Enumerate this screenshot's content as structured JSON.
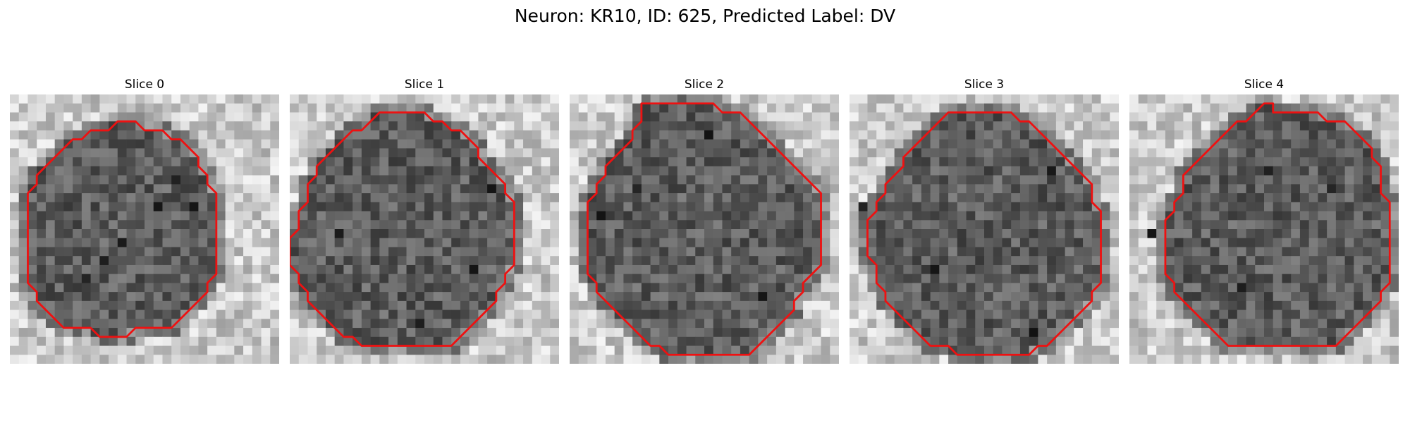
{
  "figure": {
    "title": "Neuron: KR10, ID: 625, Predicted Label: DV"
  },
  "slices": [
    {
      "label": "Slice 0",
      "contour": [
        [
          13,
          3
        ],
        [
          14,
          3
        ],
        [
          15,
          4
        ],
        [
          17,
          4
        ],
        [
          18,
          5
        ],
        [
          19,
          5
        ],
        [
          20,
          6
        ],
        [
          21,
          7
        ],
        [
          21,
          8
        ],
        [
          22,
          9
        ],
        [
          22,
          10
        ],
        [
          23,
          11
        ],
        [
          23,
          12
        ],
        [
          23,
          13
        ],
        [
          23,
          14
        ],
        [
          23,
          15
        ],
        [
          23,
          16
        ],
        [
          23,
          17
        ],
        [
          23,
          18
        ],
        [
          23,
          19
        ],
        [
          23,
          20
        ],
        [
          22,
          21
        ],
        [
          22,
          22
        ],
        [
          21,
          23
        ],
        [
          20,
          24
        ],
        [
          19,
          25
        ],
        [
          18,
          26
        ],
        [
          17,
          26
        ],
        [
          16,
          26
        ],
        [
          15,
          26
        ],
        [
          14,
          26
        ],
        [
          13,
          27
        ],
        [
          12,
          27
        ],
        [
          11,
          27
        ],
        [
          10,
          27
        ],
        [
          9,
          26
        ],
        [
          8,
          26
        ],
        [
          7,
          26
        ],
        [
          6,
          26
        ],
        [
          5,
          25
        ],
        [
          4,
          24
        ],
        [
          3,
          23
        ],
        [
          3,
          22
        ],
        [
          2,
          21
        ],
        [
          2,
          20
        ],
        [
          2,
          19
        ],
        [
          2,
          18
        ],
        [
          2,
          17
        ],
        [
          2,
          16
        ],
        [
          2,
          15
        ],
        [
          2,
          14
        ],
        [
          2,
          13
        ],
        [
          2,
          12
        ],
        [
          2,
          11
        ],
        [
          3,
          10
        ],
        [
          3,
          9
        ],
        [
          4,
          8
        ],
        [
          5,
          7
        ],
        [
          6,
          6
        ],
        [
          7,
          5
        ],
        [
          8,
          5
        ],
        [
          9,
          4
        ],
        [
          11,
          4
        ],
        [
          12,
          3
        ]
      ],
      "dark": [
        [
          18,
          9
        ],
        [
          16,
          12
        ],
        [
          10,
          18
        ],
        [
          20,
          12
        ],
        [
          12,
          16
        ],
        [
          8,
          20
        ]
      ]
    },
    {
      "label": "Slice 1",
      "contour": [
        [
          10,
          2
        ],
        [
          15,
          2
        ],
        [
          16,
          3
        ],
        [
          17,
          3
        ],
        [
          18,
          4
        ],
        [
          19,
          4
        ],
        [
          20,
          5
        ],
        [
          21,
          6
        ],
        [
          21,
          7
        ],
        [
          22,
          8
        ],
        [
          23,
          9
        ],
        [
          24,
          10
        ],
        [
          24,
          11
        ],
        [
          25,
          12
        ],
        [
          25,
          13
        ],
        [
          25,
          14
        ],
        [
          25,
          15
        ],
        [
          25,
          16
        ],
        [
          25,
          17
        ],
        [
          25,
          18
        ],
        [
          25,
          19
        ],
        [
          24,
          20
        ],
        [
          24,
          21
        ],
        [
          23,
          22
        ],
        [
          23,
          23
        ],
        [
          22,
          24
        ],
        [
          21,
          25
        ],
        [
          20,
          26
        ],
        [
          19,
          27
        ],
        [
          18,
          28
        ],
        [
          17,
          28
        ],
        [
          12,
          28
        ],
        [
          11,
          28
        ],
        [
          8,
          28
        ],
        [
          7,
          27
        ],
        [
          6,
          27
        ],
        [
          5,
          26
        ],
        [
          4,
          25
        ],
        [
          3,
          24
        ],
        [
          2,
          23
        ],
        [
          2,
          22
        ],
        [
          1,
          21
        ],
        [
          1,
          20
        ],
        [
          0,
          19
        ],
        [
          0,
          18
        ],
        [
          0,
          17
        ],
        [
          0,
          16
        ],
        [
          1,
          15
        ],
        [
          1,
          14
        ],
        [
          1,
          13
        ],
        [
          2,
          12
        ],
        [
          2,
          11
        ],
        [
          2,
          10
        ],
        [
          3,
          9
        ],
        [
          3,
          8
        ],
        [
          4,
          7
        ],
        [
          5,
          6
        ],
        [
          6,
          5
        ],
        [
          7,
          4
        ],
        [
          8,
          4
        ],
        [
          9,
          3
        ]
      ],
      "dark": [
        [
          5,
          15
        ],
        [
          20,
          19
        ],
        [
          14,
          25
        ],
        [
          22,
          10
        ]
      ]
    },
    {
      "label": "Slice 2",
      "contour": [
        [
          8,
          1
        ],
        [
          16,
          1
        ],
        [
          17,
          2
        ],
        [
          19,
          2
        ],
        [
          20,
          3
        ],
        [
          21,
          4
        ],
        [
          22,
          5
        ],
        [
          23,
          6
        ],
        [
          24,
          7
        ],
        [
          25,
          8
        ],
        [
          26,
          9
        ],
        [
          27,
          10
        ],
        [
          28,
          11
        ],
        [
          28,
          12
        ],
        [
          28,
          13
        ],
        [
          28,
          14
        ],
        [
          28,
          15
        ],
        [
          28,
          16
        ],
        [
          28,
          17
        ],
        [
          28,
          18
        ],
        [
          28,
          19
        ],
        [
          27,
          20
        ],
        [
          26,
          21
        ],
        [
          26,
          22
        ],
        [
          25,
          23
        ],
        [
          25,
          24
        ],
        [
          24,
          25
        ],
        [
          23,
          26
        ],
        [
          22,
          27
        ],
        [
          21,
          28
        ],
        [
          20,
          29
        ],
        [
          19,
          29
        ],
        [
          18,
          29
        ],
        [
          11,
          29
        ],
        [
          10,
          28
        ],
        [
          9,
          28
        ],
        [
          8,
          27
        ],
        [
          7,
          26
        ],
        [
          6,
          25
        ],
        [
          5,
          24
        ],
        [
          4,
          23
        ],
        [
          3,
          22
        ],
        [
          3,
          21
        ],
        [
          2,
          20
        ],
        [
          2,
          19
        ],
        [
          2,
          18
        ],
        [
          2,
          17
        ],
        [
          2,
          16
        ],
        [
          2,
          15
        ],
        [
          2,
          14
        ],
        [
          2,
          13
        ],
        [
          2,
          12
        ],
        [
          3,
          11
        ],
        [
          3,
          10
        ],
        [
          4,
          9
        ],
        [
          4,
          8
        ],
        [
          5,
          7
        ],
        [
          6,
          6
        ],
        [
          7,
          5
        ],
        [
          7,
          4
        ],
        [
          8,
          3
        ],
        [
          8,
          2
        ]
      ],
      "dark": [
        [
          7,
          10
        ],
        [
          21,
          22
        ],
        [
          3,
          13
        ],
        [
          15,
          4
        ]
      ]
    },
    {
      "label": "Slice 3",
      "contour": [
        [
          11,
          2
        ],
        [
          18,
          2
        ],
        [
          19,
          3
        ],
        [
          20,
          3
        ],
        [
          21,
          4
        ],
        [
          22,
          5
        ],
        [
          23,
          6
        ],
        [
          24,
          7
        ],
        [
          25,
          8
        ],
        [
          26,
          9
        ],
        [
          27,
          10
        ],
        [
          27,
          11
        ],
        [
          27,
          12
        ],
        [
          28,
          13
        ],
        [
          28,
          14
        ],
        [
          28,
          15
        ],
        [
          28,
          16
        ],
        [
          28,
          17
        ],
        [
          28,
          18
        ],
        [
          28,
          19
        ],
        [
          28,
          20
        ],
        [
          28,
          21
        ],
        [
          27,
          22
        ],
        [
          27,
          23
        ],
        [
          26,
          24
        ],
        [
          25,
          25
        ],
        [
          24,
          26
        ],
        [
          23,
          27
        ],
        [
          22,
          28
        ],
        [
          21,
          28
        ],
        [
          20,
          29
        ],
        [
          19,
          29
        ],
        [
          18,
          29
        ],
        [
          12,
          29
        ],
        [
          11,
          28
        ],
        [
          10,
          28
        ],
        [
          9,
          28
        ],
        [
          8,
          27
        ],
        [
          7,
          26
        ],
        [
          6,
          25
        ],
        [
          5,
          24
        ],
        [
          4,
          23
        ],
        [
          4,
          22
        ],
        [
          3,
          21
        ],
        [
          3,
          20
        ],
        [
          3,
          19
        ],
        [
          2,
          18
        ],
        [
          2,
          17
        ],
        [
          2,
          16
        ],
        [
          2,
          15
        ],
        [
          2,
          14
        ],
        [
          3,
          13
        ],
        [
          3,
          12
        ],
        [
          4,
          11
        ],
        [
          4,
          10
        ],
        [
          5,
          9
        ],
        [
          6,
          8
        ],
        [
          6,
          7
        ],
        [
          7,
          6
        ],
        [
          8,
          5
        ],
        [
          9,
          4
        ],
        [
          10,
          3
        ]
      ],
      "dark": [
        [
          22,
          8
        ],
        [
          1,
          12
        ],
        [
          20,
          26
        ],
        [
          9,
          19
        ]
      ]
    },
    {
      "label": "Slice 4",
      "contour": [
        [
          15,
          1
        ],
        [
          16,
          1
        ],
        [
          16,
          2
        ],
        [
          17,
          2
        ],
        [
          21,
          2
        ],
        [
          22,
          3
        ],
        [
          23,
          3
        ],
        [
          24,
          3
        ],
        [
          25,
          4
        ],
        [
          26,
          5
        ],
        [
          27,
          6
        ],
        [
          27,
          7
        ],
        [
          28,
          8
        ],
        [
          28,
          9
        ],
        [
          28,
          10
        ],
        [
          28,
          11
        ],
        [
          29,
          12
        ],
        [
          29,
          13
        ],
        [
          29,
          14
        ],
        [
          29,
          15
        ],
        [
          29,
          16
        ],
        [
          29,
          17
        ],
        [
          29,
          18
        ],
        [
          29,
          19
        ],
        [
          29,
          20
        ],
        [
          29,
          21
        ],
        [
          28,
          22
        ],
        [
          28,
          23
        ],
        [
          27,
          24
        ],
        [
          26,
          25
        ],
        [
          25,
          26
        ],
        [
          24,
          27
        ],
        [
          23,
          28
        ],
        [
          22,
          28
        ],
        [
          21,
          28
        ],
        [
          13,
          28
        ],
        [
          12,
          28
        ],
        [
          11,
          28
        ],
        [
          10,
          27
        ],
        [
          9,
          26
        ],
        [
          8,
          25
        ],
        [
          7,
          24
        ],
        [
          6,
          23
        ],
        [
          5,
          22
        ],
        [
          5,
          21
        ],
        [
          4,
          20
        ],
        [
          4,
          19
        ],
        [
          4,
          18
        ],
        [
          4,
          17
        ],
        [
          4,
          16
        ],
        [
          4,
          15
        ],
        [
          4,
          14
        ],
        [
          5,
          13
        ],
        [
          5,
          12
        ],
        [
          6,
          11
        ],
        [
          6,
          10
        ],
        [
          6,
          9
        ],
        [
          7,
          8
        ],
        [
          8,
          7
        ],
        [
          9,
          6
        ],
        [
          10,
          5
        ],
        [
          11,
          4
        ],
        [
          12,
          3
        ],
        [
          13,
          3
        ],
        [
          14,
          2
        ]
      ],
      "dark": [
        [
          15,
          8
        ],
        [
          2,
          15
        ],
        [
          22,
          10
        ],
        [
          12,
          21
        ]
      ]
    }
  ]
}
